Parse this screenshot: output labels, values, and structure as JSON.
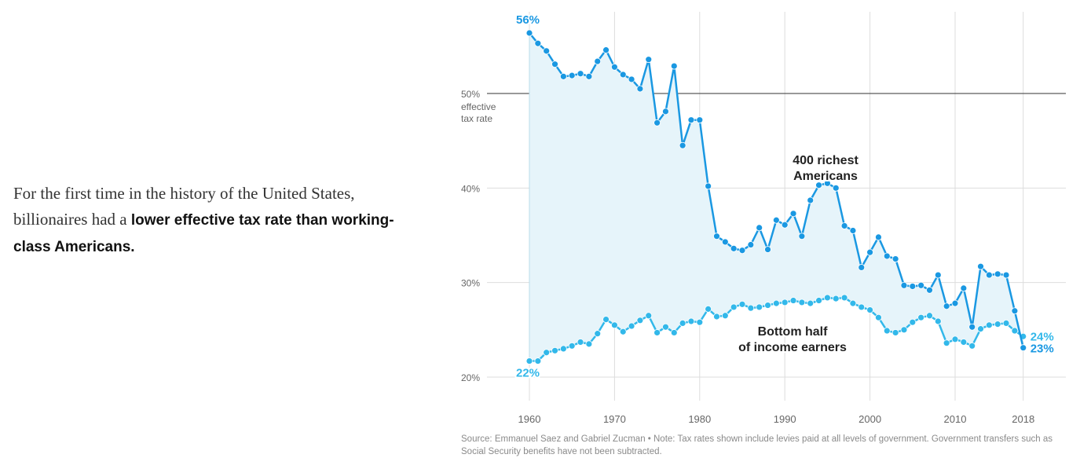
{
  "intro": {
    "part1": "For the first time in the history of the United States, billionaires had a ",
    "bold": "lower effective tax rate than working-class Americans."
  },
  "source_note": "Source: Emmanuel Saez and Gabriel Zucman  •  Note: Tax rates shown include levies paid at all levels of government. Government transfers such as Social Security benefits have not been subtracted.",
  "colors": {
    "rich": "#1a98e2",
    "bottom": "#32b8ea",
    "fill": "#e6f4fa",
    "grid": "#dddddd",
    "axis_line": "#333333"
  },
  "chart_data": {
    "type": "line",
    "ylim": [
      20,
      58
    ],
    "xlim": [
      1958,
      2023
    ],
    "yticks": [
      20,
      30,
      40,
      50
    ],
    "ytick_labels": [
      "20%",
      "30%",
      "40%",
      "50%"
    ],
    "y_axis_sublabel": [
      "effective",
      "tax rate"
    ],
    "xticks": [
      1960,
      1970,
      1980,
      1990,
      2000,
      2010,
      2018
    ],
    "xtick_labels": [
      "1960",
      "1970",
      "1980",
      "1990",
      "2000",
      "2010",
      "2018"
    ],
    "reference_line": 50,
    "grid": true,
    "x": [
      1960,
      1961,
      1962,
      1963,
      1964,
      1965,
      1966,
      1967,
      1968,
      1969,
      1970,
      1971,
      1972,
      1973,
      1974,
      1975,
      1976,
      1977,
      1978,
      1979,
      1980,
      1981,
      1982,
      1983,
      1984,
      1985,
      1986,
      1987,
      1988,
      1989,
      1990,
      1991,
      1992,
      1993,
      1994,
      1995,
      1996,
      1997,
      1998,
      1999,
      2000,
      2001,
      2002,
      2003,
      2004,
      2005,
      2006,
      2007,
      2008,
      2009,
      2010,
      2011,
      2012,
      2013,
      2014,
      2015,
      2016,
      2017,
      2018
    ],
    "series": [
      {
        "name": "400 richest Americans",
        "label_lines": [
          "400 richest",
          "Americans"
        ],
        "start_label": "56%",
        "end_label": "23%",
        "values": [
          56.4,
          55.3,
          54.5,
          53.1,
          51.8,
          51.9,
          52.1,
          51.8,
          53.4,
          54.6,
          52.8,
          52.0,
          51.5,
          50.5,
          53.6,
          46.9,
          48.1,
          52.9,
          44.5,
          47.2,
          47.2,
          40.2,
          34.9,
          34.3,
          33.6,
          33.4,
          34.0,
          35.8,
          33.5,
          36.6,
          36.1,
          37.3,
          34.9,
          38.7,
          40.3,
          40.5,
          40.0,
          36.0,
          35.5,
          31.6,
          33.2,
          34.8,
          32.8,
          32.5,
          29.7,
          29.6,
          29.7,
          29.2,
          30.8,
          27.5,
          27.8,
          29.4,
          25.3,
          31.7,
          30.8,
          30.9,
          30.8,
          27.0,
          23.1
        ]
      },
      {
        "name": "Bottom half of income earners",
        "label_lines": [
          "Bottom half",
          "of income earners"
        ],
        "start_label": "22%",
        "end_label": "24%",
        "values": [
          21.7,
          21.7,
          22.6,
          22.8,
          23.0,
          23.3,
          23.7,
          23.5,
          24.6,
          26.1,
          25.5,
          24.8,
          25.4,
          26.0,
          26.5,
          24.7,
          25.3,
          24.7,
          25.7,
          25.9,
          25.8,
          27.2,
          26.4,
          26.5,
          27.4,
          27.7,
          27.3,
          27.4,
          27.6,
          27.8,
          27.9,
          28.1,
          27.9,
          27.8,
          28.1,
          28.4,
          28.3,
          28.4,
          27.8,
          27.4,
          27.1,
          26.3,
          24.9,
          24.7,
          25.0,
          25.8,
          26.3,
          26.5,
          25.9,
          23.6,
          24.0,
          23.7,
          23.3,
          25.1,
          25.5,
          25.6,
          25.7,
          24.9,
          24.3
        ]
      }
    ]
  }
}
